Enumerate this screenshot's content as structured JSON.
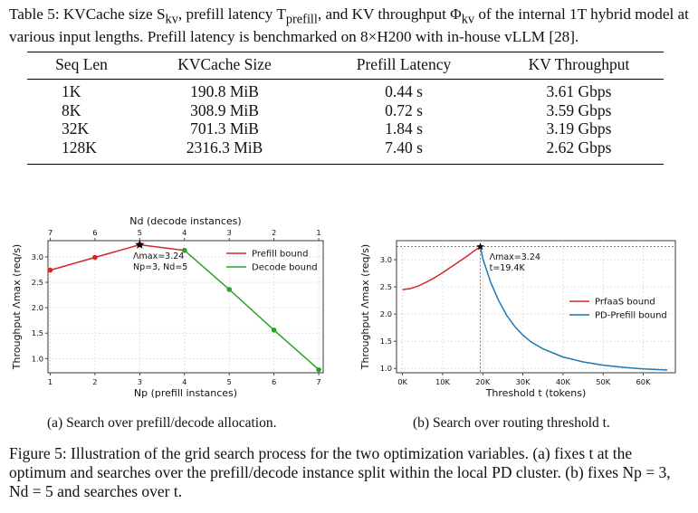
{
  "table": {
    "caption_label": "Table 5:",
    "caption_text": "KVCache size S",
    "caption_sub1": "kv",
    "caption_text2": ", prefill latency T",
    "caption_sub2": "prefill",
    "caption_text3": ", and KV throughput Φ",
    "caption_sub3": "kv",
    "caption_text4": " of the internal 1T hybrid model at various input lengths. Prefill latency is benchmarked on 8×H200 with in-house vLLM [28].",
    "headers": [
      "Seq Len",
      "KVCache Size",
      "Prefill Latency",
      "KV Throughput"
    ],
    "rows": [
      [
        "1K",
        "190.8 MiB",
        "0.44 s",
        "3.61 Gbps"
      ],
      [
        "8K",
        "308.9 MiB",
        "0.72 s",
        "3.59 Gbps"
      ],
      [
        "32K",
        "701.3 MiB",
        "1.84 s",
        "3.19 Gbps"
      ],
      [
        "128K",
        "2316.3 MiB",
        "7.40 s",
        "2.62 Gbps"
      ]
    ]
  },
  "chart_data": [
    {
      "type": "line",
      "title": "",
      "xlabel": "N_p (prefill instances)",
      "top_xlabel": "N_d (decode instances)",
      "ylabel": "Throughput Λ_max (req/s)",
      "x_ticks": [
        1,
        2,
        3,
        4,
        5,
        6,
        7
      ],
      "top_x_ticks": [
        7,
        6,
        5,
        4,
        3,
        2,
        1
      ],
      "y_ticks": [
        1.0,
        1.5,
        2.0,
        2.5,
        3.0
      ],
      "xlim": [
        0.95,
        7.1
      ],
      "ylim": [
        0.72,
        3.32
      ],
      "grid": true,
      "legend_position": "top-right",
      "series": [
        {
          "name": "Prefill bound",
          "color": "#d62728",
          "x": [
            1,
            2,
            3,
            4
          ],
          "y": [
            2.74,
            2.99,
            3.24,
            3.13
          ]
        },
        {
          "name": "Decode bound",
          "color": "#2ca02c",
          "x": [
            4,
            5,
            6,
            7
          ],
          "y": [
            3.13,
            2.36,
            1.56,
            0.78
          ]
        }
      ],
      "annotation": {
        "x": 3,
        "y": 3.24,
        "lines": [
          "Λmax=3.24",
          "Np=3, Nd=5"
        ]
      }
    },
    {
      "type": "line",
      "title": "",
      "xlabel": "Threshold t (tokens)",
      "ylabel": "Throughput Λ_max (req/s)",
      "x_ticks": [
        "0K",
        "10K",
        "20K",
        "30K",
        "40K",
        "50K",
        "60K"
      ],
      "y_ticks": [
        1.0,
        1.5,
        2.0,
        2.5,
        3.0
      ],
      "xlim": [
        -1.5,
        68
      ],
      "ylim": [
        0.92,
        3.35
      ],
      "grid": true,
      "legend_position": "center-right",
      "series": [
        {
          "name": "PrfaaS bound",
          "color": "#d62728",
          "x": [
            0,
            2,
            4,
            6,
            8,
            10,
            12,
            14,
            16,
            18,
            19.4
          ],
          "y": [
            2.45,
            2.47,
            2.52,
            2.59,
            2.67,
            2.76,
            2.86,
            2.96,
            3.06,
            3.17,
            3.24
          ]
        },
        {
          "name": "PD-Prefill bound",
          "color": "#1f77b4",
          "x": [
            19.4,
            20,
            22,
            24,
            26,
            28,
            30,
            32,
            35,
            40,
            45,
            50,
            55,
            60,
            66
          ],
          "y": [
            3.24,
            3.02,
            2.58,
            2.24,
            1.97,
            1.77,
            1.61,
            1.49,
            1.36,
            1.21,
            1.12,
            1.06,
            1.02,
            0.99,
            0.97
          ]
        }
      ],
      "annotation": {
        "x": 19.4,
        "y": 3.24,
        "lines": [
          "Λmax=3.24",
          "t=19.4K"
        ]
      }
    }
  ],
  "subcaptions": {
    "a": "(a) Search over prefill/decode allocation.",
    "b": "(b) Search over routing threshold t."
  },
  "figure": {
    "caption": "Figure 5: Illustration of the grid search process for the two optimization variables. (a) fixes t at the optimum and searches over the prefill/decode instance split within the local PD cluster. (b) fixes Np = 3, Nd = 5 and searches over t."
  }
}
